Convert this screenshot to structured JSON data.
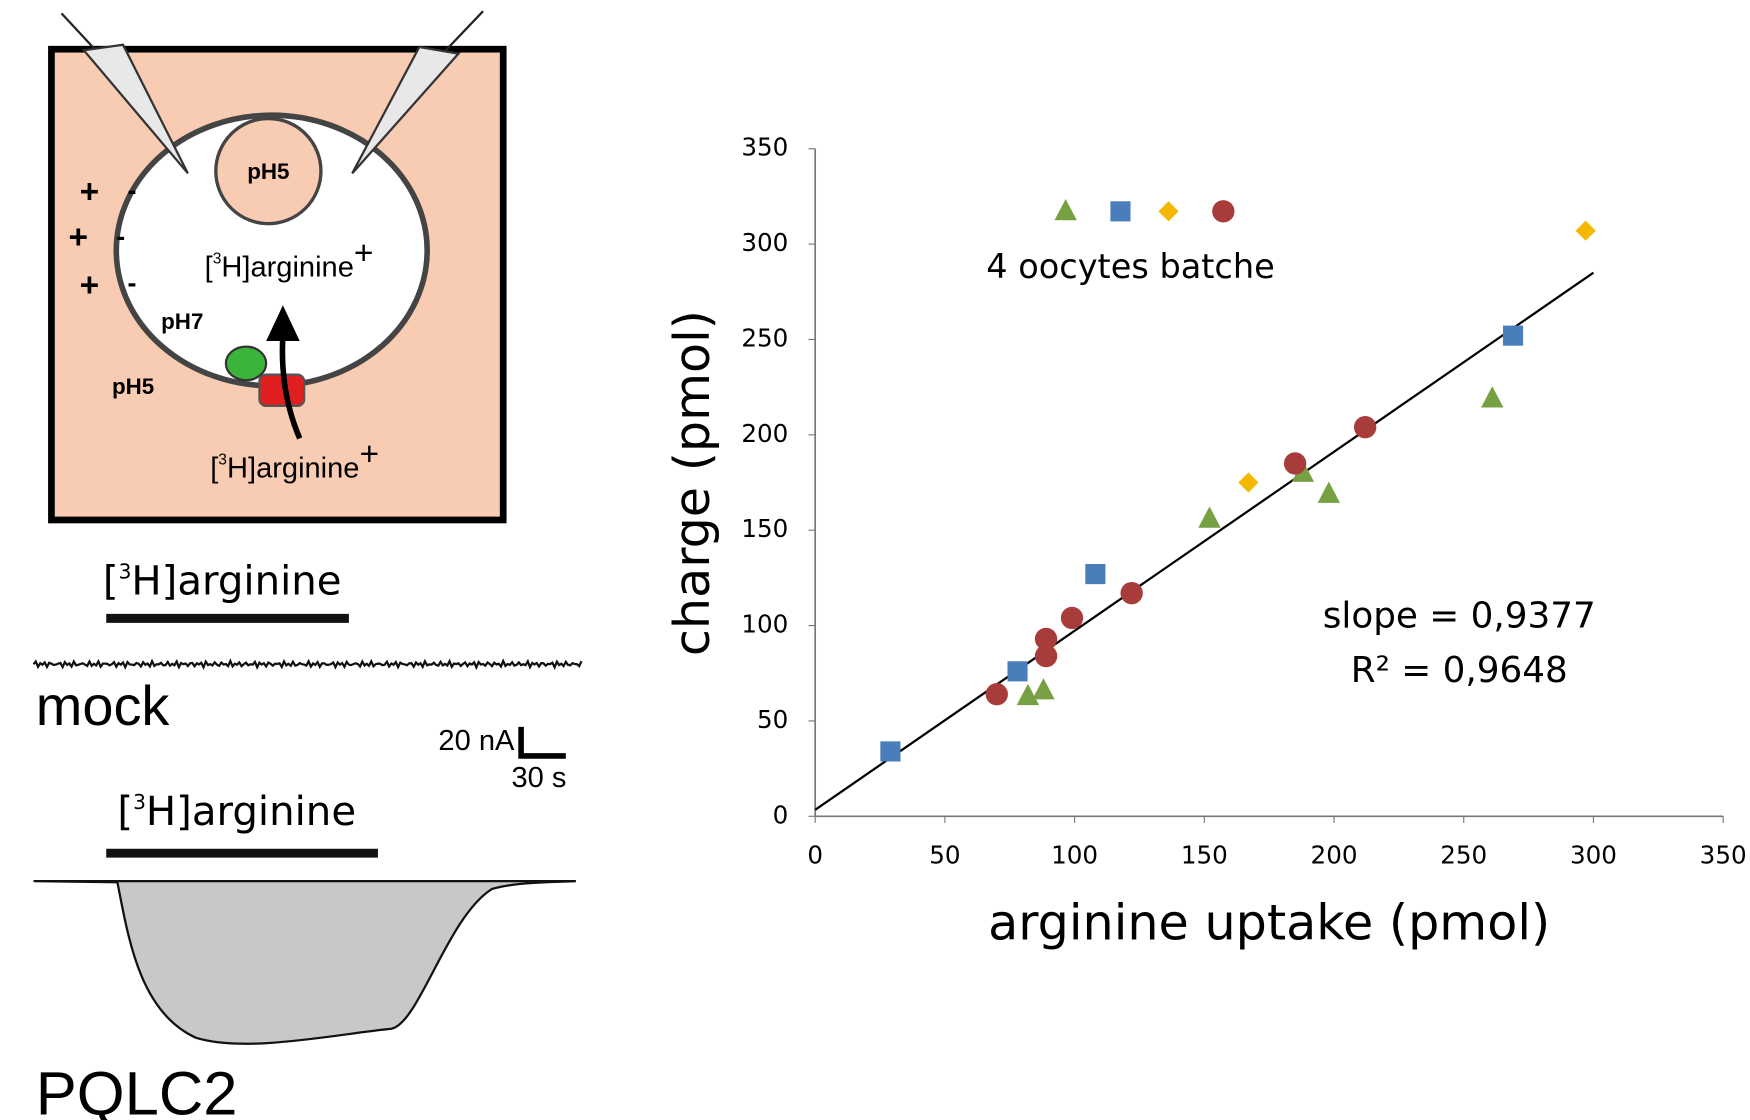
{
  "diagram": {
    "inner_ph": "pH5",
    "cell_ph": "pH7",
    "outer_ph": "pH5",
    "plus": "+",
    "minus": "-",
    "substrate_in": {
      "open": "[",
      "isotope": "3",
      "name": "H]arginine",
      "charge": "+"
    },
    "substrate_out": {
      "open": "[",
      "isotope": "3",
      "name": "H]arginine",
      "charge": "+"
    }
  },
  "traces": {
    "application_labels": [
      {
        "open": "[",
        "isotope": "3",
        "name": "H]arginine"
      },
      {
        "open": "[",
        "isotope": "3",
        "name": "H]arginine"
      }
    ],
    "mock": "mock",
    "pqlc2": "PQLC2",
    "scale_current": "20 nA",
    "scale_time": "30 s"
  },
  "chart_data": {
    "type": "scatter",
    "xlabel": "arginine uptake (pmol)",
    "ylabel": "charge (pmol)",
    "legend_text": "4 oocytes batche",
    "slope_text": "slope = 0,9377",
    "r2_text": "R² = 0,9648",
    "xlim": [
      0,
      350
    ],
    "ylim": [
      0,
      350
    ],
    "xticks": [
      0,
      50,
      100,
      150,
      200,
      250,
      300,
      350
    ],
    "yticks": [
      0,
      50,
      100,
      150,
      200,
      250,
      300,
      350
    ],
    "grid": false,
    "series": [
      {
        "color": "#77a043",
        "marker": "triangle",
        "x": [
          152,
          188,
          198,
          261,
          82,
          88
        ],
        "values": [
          156,
          180,
          169,
          219,
          63,
          66
        ]
      },
      {
        "color": "#4a7ebb",
        "marker": "square",
        "x": [
          29,
          78,
          108,
          269
        ],
        "values": [
          34,
          76,
          127,
          252
        ]
      },
      {
        "color": "#f5b800",
        "marker": "diamond",
        "x": [
          167,
          297
        ],
        "values": [
          175,
          307
        ]
      },
      {
        "color": "#a83c3a",
        "marker": "circle",
        "x": [
          70,
          89,
          89,
          99,
          122,
          185,
          212
        ],
        "values": [
          64,
          84,
          93,
          104,
          117,
          185,
          204
        ]
      }
    ],
    "trendline": {
      "color": "#000000",
      "x": [
        0,
        300
      ],
      "values": [
        3.4,
        285
      ]
    }
  }
}
